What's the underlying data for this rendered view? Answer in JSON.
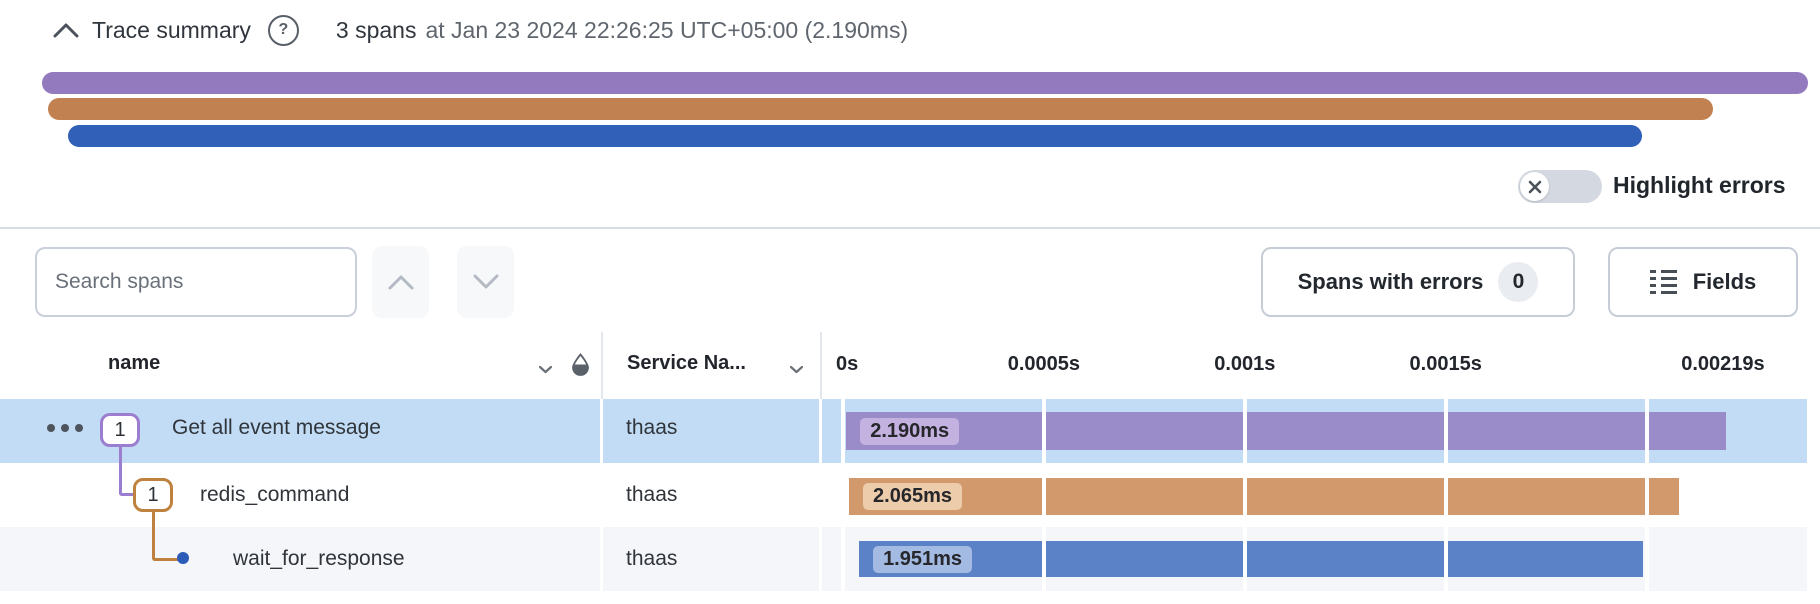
{
  "header": {
    "title": "Trace summary",
    "span_count": "3 spans",
    "trace_time": "at Jan 23 2024 22:26:25 UTC+05:00 (2.190ms)"
  },
  "highlight_errors": {
    "label": "Highlight errors",
    "enabled": false
  },
  "controls": {
    "search_placeholder": "Search spans",
    "spans_with_errors": {
      "label": "Spans with errors",
      "count": "0"
    },
    "fields": {
      "label": "Fields"
    }
  },
  "table": {
    "columns": {
      "name": "name",
      "service": "Service Na..."
    },
    "ticks": [
      {
        "label": "0s",
        "ms": 0
      },
      {
        "label": "0.0005s",
        "ms": 0.5
      },
      {
        "label": "0.001s",
        "ms": 1.0
      },
      {
        "label": "0.0015s",
        "ms": 1.5
      },
      {
        "label": "0.00219s",
        "ms": 2.19
      }
    ],
    "gridlines_ms": [
      0,
      0.5,
      1.0,
      1.5,
      2.0
    ],
    "total_ms": 2.19
  },
  "spans": [
    {
      "name": "Get all event message",
      "service": "thaas",
      "badge": "1",
      "duration_label": "2.190ms",
      "start_ms": 0.008,
      "duration_ms": 2.19,
      "color": "#9a8cc9",
      "chip_bg": "#c3b2e0",
      "minimap_color": "#9379be",
      "badge_border": "#9c7ed1",
      "selected": true
    },
    {
      "name": "redis_command",
      "service": "thaas",
      "badge": "1",
      "duration_label": "2.065ms",
      "start_ms": 0.015,
      "duration_ms": 2.065,
      "color": "#d1996c",
      "chip_bg": "#ecccab",
      "minimap_color": "#c28150",
      "badge_border": "#bf813e",
      "connector_color": "#9c7ed1",
      "selected": false
    },
    {
      "name": "wait_for_response",
      "service": "thaas",
      "duration_label": "1.951ms",
      "start_ms": 0.04,
      "duration_ms": 1.951,
      "color": "#5b82c6",
      "chip_bg": "#a3bbe2",
      "minimap_color": "#3160b8",
      "dot_color": "#2d5bb8",
      "connector_color": "#bf813e",
      "selected": false
    }
  ],
  "colors": {
    "selected_row_bg": "#c1dcf4",
    "alt_row_bg": "#f4f6fa"
  }
}
